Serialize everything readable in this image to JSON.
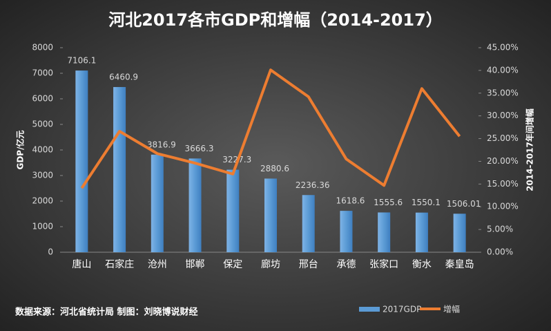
{
  "chart_data": {
    "type": "bar-line",
    "title": "河北2017各市GDP和增幅（2014-2017）",
    "source": "数据来源：河北省统计局 制图：刘晓博说财经",
    "y_label": "GDP/亿元",
    "y2_label": "2014-2017年间增幅",
    "categories": [
      "唐山",
      "石家庄",
      "沧州",
      "邯郸",
      "保定",
      "廊坊",
      "邢台",
      "承德",
      "张家口",
      "衡水",
      "秦皇岛"
    ],
    "series": [
      {
        "name": "2017GDP",
        "type": "bar",
        "color": "#5b9bd5",
        "values": [
          7106.1,
          6460.9,
          3816.9,
          3666.3,
          3227.3,
          2880.6,
          2236.36,
          1618.6,
          1555.6,
          1550.1,
          1506.01
        ]
      },
      {
        "name": "增幅",
        "type": "line",
        "axis": "y2",
        "color": "#ed7d31",
        "values": [
          14.1,
          26.6,
          21.7,
          19.6,
          17.2,
          40.1,
          34.2,
          20.5,
          14.7,
          36.0,
          25.5
        ]
      }
    ],
    "ylim": [
      0,
      8000
    ],
    "yticks": [
      0,
      1000,
      2000,
      3000,
      4000,
      5000,
      6000,
      7000,
      8000
    ],
    "y2lim": [
      0,
      45
    ],
    "y2ticks": [
      {
        "value": 0,
        "label": "0.00%"
      },
      {
        "value": 5,
        "label": "5.00%"
      },
      {
        "value": 10,
        "label": "10.00%"
      },
      {
        "value": 15,
        "label": "15.00%"
      },
      {
        "value": 20,
        "label": "20.00%"
      },
      {
        "value": 25,
        "label": "25.00%"
      },
      {
        "value": 30,
        "label": "30.00%"
      },
      {
        "value": 35,
        "label": "35.00%"
      },
      {
        "value": 40,
        "label": "40.00%"
      },
      {
        "value": 45,
        "label": "45.00%"
      }
    ],
    "legend": "bottom-right"
  }
}
